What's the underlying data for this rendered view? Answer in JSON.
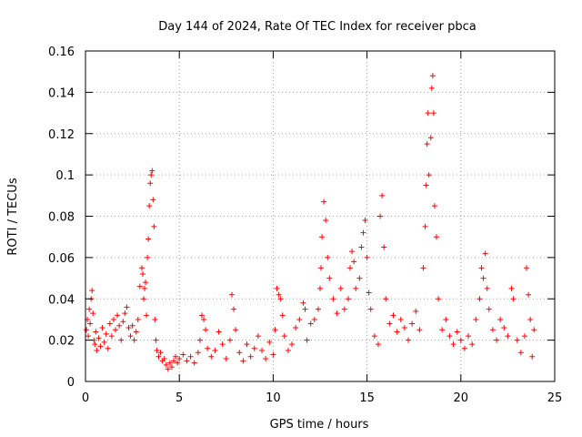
{
  "chart_data": {
    "type": "scatter",
    "title": "Day 144 of 2024, Rate Of TEC Index for receiver pbca",
    "xlabel": "GPS time / hours",
    "ylabel": "ROTI / TECUs",
    "xlim": [
      0,
      25
    ],
    "ylim": [
      0,
      0.16
    ],
    "xticks": [
      0,
      5,
      10,
      15,
      20,
      25
    ],
    "yticks": [
      0,
      0.02,
      0.04,
      0.06,
      0.08,
      0.1,
      0.12,
      0.14,
      0.16
    ],
    "xtick_labels": [
      "0",
      "5",
      "10",
      "15",
      "20",
      "25"
    ],
    "ytick_labels": [
      "0",
      "0.02",
      "0.04",
      "0.06",
      "0.08",
      "0.1",
      "0.12",
      "0.14",
      "0.16"
    ],
    "grid": true,
    "marker": "+",
    "color": "#ff0000",
    "series": [
      {
        "name": "ROTI",
        "points": [
          [
            0.05,
            0.025
          ],
          [
            0.1,
            0.03
          ],
          [
            0.15,
            0.022
          ],
          [
            0.2,
            0.035
          ],
          [
            0.25,
            0.028
          ],
          [
            0.3,
            0.04
          ],
          [
            0.35,
            0.044
          ],
          [
            0.4,
            0.033
          ],
          [
            0.45,
            0.02
          ],
          [
            0.5,
            0.018
          ],
          [
            0.55,
            0.024
          ],
          [
            0.6,
            0.015
          ],
          [
            0.7,
            0.021
          ],
          [
            0.8,
            0.017
          ],
          [
            0.9,
            0.026
          ],
          [
            1.0,
            0.019
          ],
          [
            1.1,
            0.023
          ],
          [
            1.2,
            0.016
          ],
          [
            1.3,
            0.028
          ],
          [
            1.4,
            0.022
          ],
          [
            1.5,
            0.03
          ],
          [
            1.6,
            0.025
          ],
          [
            1.7,
            0.032
          ],
          [
            1.8,
            0.027
          ],
          [
            1.9,
            0.02
          ],
          [
            2.0,
            0.029
          ],
          [
            2.1,
            0.033
          ],
          [
            2.2,
            0.036
          ],
          [
            2.3,
            0.026
          ],
          [
            2.4,
            0.022
          ],
          [
            2.5,
            0.027
          ],
          [
            2.6,
            0.02
          ],
          [
            2.7,
            0.024
          ],
          [
            2.8,
            0.03
          ],
          [
            2.9,
            0.046
          ],
          [
            3.0,
            0.055
          ],
          [
            3.05,
            0.052
          ],
          [
            3.1,
            0.04
          ],
          [
            3.15,
            0.045
          ],
          [
            3.2,
            0.048
          ],
          [
            3.25,
            0.032
          ],
          [
            3.3,
            0.06
          ],
          [
            3.35,
            0.069
          ],
          [
            3.4,
            0.085
          ],
          [
            3.45,
            0.096
          ],
          [
            3.5,
            0.1
          ],
          [
            3.55,
            0.102
          ],
          [
            3.6,
            0.088
          ],
          [
            3.65,
            0.075
          ],
          [
            3.7,
            0.03
          ],
          [
            3.75,
            0.02
          ],
          [
            3.8,
            0.015
          ],
          [
            3.9,
            0.012
          ],
          [
            4.0,
            0.014
          ],
          [
            4.1,
            0.01
          ],
          [
            4.2,
            0.011
          ],
          [
            4.3,
            0.008
          ],
          [
            4.4,
            0.006
          ],
          [
            4.5,
            0.009
          ],
          [
            4.6,
            0.007
          ],
          [
            4.7,
            0.01
          ],
          [
            4.8,
            0.012
          ],
          [
            4.9,
            0.009
          ],
          [
            5.0,
            0.011
          ],
          [
            5.2,
            0.013
          ],
          [
            5.4,
            0.01
          ],
          [
            5.6,
            0.012
          ],
          [
            5.8,
            0.009
          ],
          [
            6.0,
            0.014
          ],
          [
            6.1,
            0.02
          ],
          [
            6.2,
            0.032
          ],
          [
            6.3,
            0.03
          ],
          [
            6.4,
            0.025
          ],
          [
            6.5,
            0.016
          ],
          [
            6.7,
            0.012
          ],
          [
            6.9,
            0.015
          ],
          [
            7.1,
            0.024
          ],
          [
            7.3,
            0.018
          ],
          [
            7.5,
            0.011
          ],
          [
            7.7,
            0.02
          ],
          [
            7.8,
            0.042
          ],
          [
            7.9,
            0.035
          ],
          [
            8.0,
            0.025
          ],
          [
            8.2,
            0.014
          ],
          [
            8.4,
            0.01
          ],
          [
            8.6,
            0.018
          ],
          [
            8.8,
            0.012
          ],
          [
            9.0,
            0.016
          ],
          [
            9.2,
            0.022
          ],
          [
            9.4,
            0.015
          ],
          [
            9.6,
            0.011
          ],
          [
            9.8,
            0.019
          ],
          [
            10.0,
            0.013
          ],
          [
            10.1,
            0.025
          ],
          [
            10.2,
            0.045
          ],
          [
            10.3,
            0.042
          ],
          [
            10.4,
            0.04
          ],
          [
            10.5,
            0.032
          ],
          [
            10.6,
            0.022
          ],
          [
            10.8,
            0.015
          ],
          [
            11.0,
            0.018
          ],
          [
            11.2,
            0.026
          ],
          [
            11.4,
            0.03
          ],
          [
            11.6,
            0.038
          ],
          [
            11.7,
            0.035
          ],
          [
            11.8,
            0.02
          ],
          [
            12.0,
            0.028
          ],
          [
            12.2,
            0.03
          ],
          [
            12.4,
            0.035
          ],
          [
            12.5,
            0.045
          ],
          [
            12.55,
            0.055
          ],
          [
            12.6,
            0.07
          ],
          [
            12.7,
            0.087
          ],
          [
            12.8,
            0.078
          ],
          [
            12.9,
            0.06
          ],
          [
            13.0,
            0.05
          ],
          [
            13.2,
            0.04
          ],
          [
            13.4,
            0.033
          ],
          [
            13.6,
            0.045
          ],
          [
            13.8,
            0.035
          ],
          [
            14.0,
            0.04
          ],
          [
            14.1,
            0.055
          ],
          [
            14.2,
            0.063
          ],
          [
            14.3,
            0.058
          ],
          [
            14.4,
            0.045
          ],
          [
            14.6,
            0.05
          ],
          [
            14.7,
            0.065
          ],
          [
            14.8,
            0.072
          ],
          [
            14.9,
            0.078
          ],
          [
            15.0,
            0.06
          ],
          [
            15.1,
            0.043
          ],
          [
            15.2,
            0.035
          ],
          [
            15.4,
            0.022
          ],
          [
            15.6,
            0.018
          ],
          [
            15.7,
            0.08
          ],
          [
            15.8,
            0.09
          ],
          [
            15.9,
            0.065
          ],
          [
            16.0,
            0.04
          ],
          [
            16.2,
            0.028
          ],
          [
            16.4,
            0.032
          ],
          [
            16.6,
            0.024
          ],
          [
            16.8,
            0.03
          ],
          [
            17.0,
            0.026
          ],
          [
            17.2,
            0.02
          ],
          [
            17.4,
            0.028
          ],
          [
            17.6,
            0.034
          ],
          [
            17.8,
            0.025
          ],
          [
            18.0,
            0.055
          ],
          [
            18.1,
            0.075
          ],
          [
            18.15,
            0.095
          ],
          [
            18.2,
            0.115
          ],
          [
            18.25,
            0.13
          ],
          [
            18.3,
            0.1
          ],
          [
            18.4,
            0.118
          ],
          [
            18.45,
            0.142
          ],
          [
            18.5,
            0.148
          ],
          [
            18.55,
            0.13
          ],
          [
            18.6,
            0.085
          ],
          [
            18.7,
            0.07
          ],
          [
            18.8,
            0.04
          ],
          [
            19.0,
            0.025
          ],
          [
            19.2,
            0.03
          ],
          [
            19.4,
            0.022
          ],
          [
            19.6,
            0.018
          ],
          [
            19.8,
            0.024
          ],
          [
            20.0,
            0.02
          ],
          [
            20.2,
            0.016
          ],
          [
            20.4,
            0.022
          ],
          [
            20.6,
            0.018
          ],
          [
            20.8,
            0.03
          ],
          [
            21.0,
            0.04
          ],
          [
            21.1,
            0.055
          ],
          [
            21.2,
            0.05
          ],
          [
            21.3,
            0.062
          ],
          [
            21.4,
            0.045
          ],
          [
            21.5,
            0.035
          ],
          [
            21.7,
            0.025
          ],
          [
            21.9,
            0.02
          ],
          [
            22.1,
            0.03
          ],
          [
            22.3,
            0.026
          ],
          [
            22.5,
            0.022
          ],
          [
            22.7,
            0.045
          ],
          [
            22.8,
            0.04
          ],
          [
            23.0,
            0.02
          ],
          [
            23.2,
            0.014
          ],
          [
            23.4,
            0.022
          ],
          [
            23.5,
            0.055
          ],
          [
            23.6,
            0.042
          ],
          [
            23.7,
            0.03
          ],
          [
            23.8,
            0.012
          ],
          [
            23.9,
            0.025
          ]
        ]
      }
    ]
  }
}
